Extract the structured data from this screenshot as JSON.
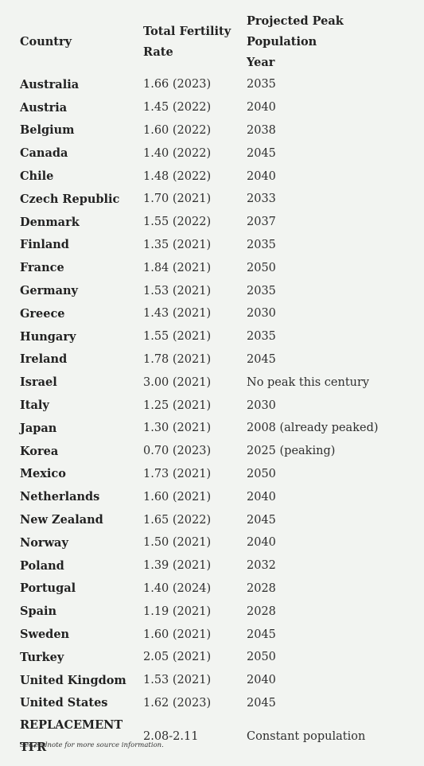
{
  "headers": {
    "country": "Country",
    "tfr_line1": "Total Fertility",
    "tfr_line2": "Rate",
    "peak_line1": "Projected Peak Population",
    "peak_line2": "Year"
  },
  "rows": [
    {
      "country": "Australia",
      "tfr": "1.66 (2023)",
      "peak": "2035"
    },
    {
      "country": "Austria",
      "tfr": "1.45 (2022)",
      "peak": "2040"
    },
    {
      "country": "Belgium",
      "tfr": "1.60 (2022)",
      "peak": "2038"
    },
    {
      "country": "Canada",
      "tfr": "1.40 (2022)",
      "peak": "2045"
    },
    {
      "country": "Chile",
      "tfr": "1.48 (2022)",
      "peak": "2040"
    },
    {
      "country": "Czech Republic",
      "tfr": "1.70 (2021)",
      "peak": "2033"
    },
    {
      "country": "Denmark",
      "tfr": "1.55 (2022)",
      "peak": "2037"
    },
    {
      "country": "Finland",
      "tfr": "1.35 (2021)",
      "peak": "2035"
    },
    {
      "country": "France",
      "tfr": "1.84 (2021)",
      "peak": "2050"
    },
    {
      "country": "Germany",
      "tfr": "1.53 (2021)",
      "peak": "2035"
    },
    {
      "country": "Greece",
      "tfr": "1.43 (2021)",
      "peak": "2030"
    },
    {
      "country": "Hungary",
      "tfr": "1.55 (2021)",
      "peak": "2035"
    },
    {
      "country": "Ireland",
      "tfr": "1.78 (2021)",
      "peak": "2045"
    },
    {
      "country": "Israel",
      "tfr": "3.00 (2021)",
      "peak": "No peak this century"
    },
    {
      "country": "Italy",
      "tfr": "1.25 (2021)",
      "peak": "2030"
    },
    {
      "country": "Japan",
      "tfr": "1.30 (2021)",
      "peak": "2008 (already peaked)"
    },
    {
      "country": "Korea",
      "tfr": "0.70 (2023)",
      "peak": "2025 (peaking)"
    },
    {
      "country": "Mexico",
      "tfr": "1.73 (2021)",
      "peak": "2050"
    },
    {
      "country": "Netherlands",
      "tfr": "1.60 (2021)",
      "peak": "2040"
    },
    {
      "country": "New Zealand",
      "tfr": "1.65 (2022)",
      "peak": "2045"
    },
    {
      "country": "Norway",
      "tfr": "1.50 (2021)",
      "peak": "2040"
    },
    {
      "country": "Poland",
      "tfr": "1.39 (2021)",
      "peak": "2032"
    },
    {
      "country": "Portugal",
      "tfr": "1.40 (2024)",
      "peak": "2028"
    },
    {
      "country": "Spain",
      "tfr": "1.19 (2021)",
      "peak": "2028"
    },
    {
      "country": "Sweden",
      "tfr": "1.60 (2021)",
      "peak": "2045"
    },
    {
      "country": "Turkey",
      "tfr": "2.05 (2021)",
      "peak": "2050"
    },
    {
      "country": "United Kingdom",
      "tfr": "1.53 (2021)",
      "peak": "2040"
    },
    {
      "country": "United States",
      "tfr": "1.62 (2023)",
      "peak": "2045"
    }
  ],
  "replacement": {
    "label_line1": "REPLACEMENT",
    "label_line2": "TFR",
    "tfr": "2.08-2.11",
    "peak": "Constant population"
  },
  "footnote": "See endnote for more source information.",
  "colors": {
    "background": "#f2f4f1",
    "text": "#2b2b2b"
  }
}
